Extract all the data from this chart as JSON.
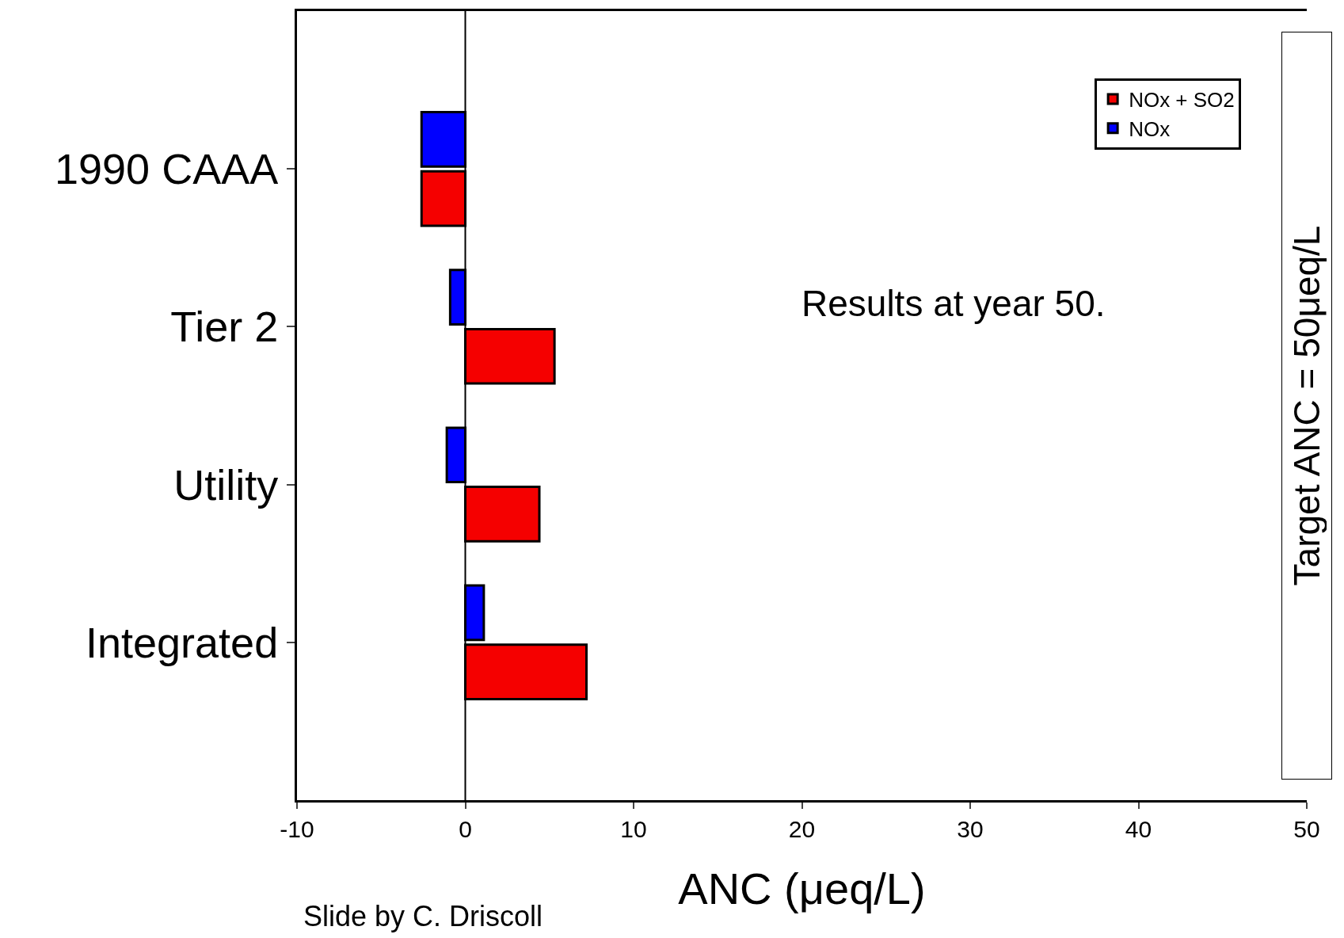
{
  "chart_data": {
    "type": "bar",
    "orientation": "horizontal",
    "xlabel": "ANC (μeq/L)",
    "categories": [
      "1990 CAAA",
      "Tier 2",
      "Utility",
      "Integrated"
    ],
    "series": [
      {
        "name": "NOx + SO2",
        "color": "#f50000",
        "values": [
          -2.6,
          5.3,
          4.4,
          7.2
        ]
      },
      {
        "name": "NOx",
        "color": "#0000ff",
        "values": [
          -2.6,
          -0.9,
          -1.1,
          1.1
        ]
      }
    ],
    "xlim": [
      -10,
      50
    ],
    "xticks": [
      -10,
      0,
      10,
      20,
      30,
      40,
      50
    ],
    "ref_lines": [
      {
        "axis": "x",
        "value": 0,
        "color": "#000000",
        "line_style": "solid"
      }
    ],
    "legend": "top right",
    "annotations": [
      "Results at year 50.",
      "Target ANC = 50μeq/L",
      "Slide by C. Driscoll"
    ]
  }
}
